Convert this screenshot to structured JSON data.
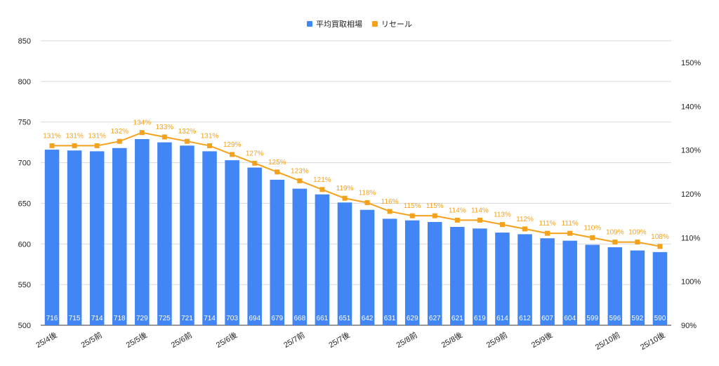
{
  "chart_data": {
    "type": "bar+line",
    "title": "",
    "legend": {
      "position": "top",
      "items": [
        {
          "name": "平均買取相場",
          "type": "bar",
          "color": "#4285f4"
        },
        {
          "name": "リセール",
          "type": "line",
          "color": "#f4a11c"
        }
      ]
    },
    "categories": [
      "25/4後",
      "",
      "25/5前",
      "",
      "25/5後",
      "",
      "25/6前",
      "",
      "25/6後",
      "",
      "",
      "25/7前",
      "",
      "25/7後",
      "",
      "",
      "25/8前",
      "",
      "25/8後",
      "",
      "25/9前",
      "",
      "25/9後",
      "",
      "",
      "25/10前",
      "",
      "25/10後"
    ],
    "visible_tick_labels": [
      "25/4後",
      "25/5前",
      "25/5後",
      "25/6前",
      "25/6後",
      "25/7前",
      "25/7後",
      "25/8前",
      "25/8後",
      "25/9前",
      "25/9後",
      "25/10前",
      "25/10後"
    ],
    "series": [
      {
        "name": "平均買取相場",
        "type": "bar",
        "axis": "left",
        "color": "#4285f4",
        "values": [
          716,
          715,
          714,
          718,
          729,
          725,
          721,
          714,
          703,
          694,
          679,
          668,
          661,
          651,
          642,
          631,
          629,
          627,
          621,
          619,
          614,
          612,
          607,
          604,
          599,
          596,
          592,
          590
        ]
      },
      {
        "name": "リセール",
        "type": "line",
        "axis": "right",
        "color": "#f4a11c",
        "unit": "%",
        "values": [
          131,
          131,
          131,
          132,
          134,
          133,
          132,
          131,
          129,
          127,
          125,
          123,
          121,
          119,
          118,
          116,
          115,
          115,
          114,
          114,
          113,
          112,
          111,
          111,
          110,
          109,
          109,
          108
        ]
      }
    ],
    "left_axis": {
      "label": "",
      "ylim": [
        500,
        850
      ],
      "ticks": [
        500,
        550,
        600,
        650,
        700,
        750,
        800,
        850
      ]
    },
    "right_axis": {
      "label": "",
      "ylim": [
        90,
        150
      ],
      "ticks": [
        "90%",
        "100%",
        "110%",
        "120%",
        "130%",
        "140%",
        "150%"
      ]
    },
    "grid": true,
    "bar_label_color": "#ffffff",
    "line_label_color": "#f4a11c"
  }
}
